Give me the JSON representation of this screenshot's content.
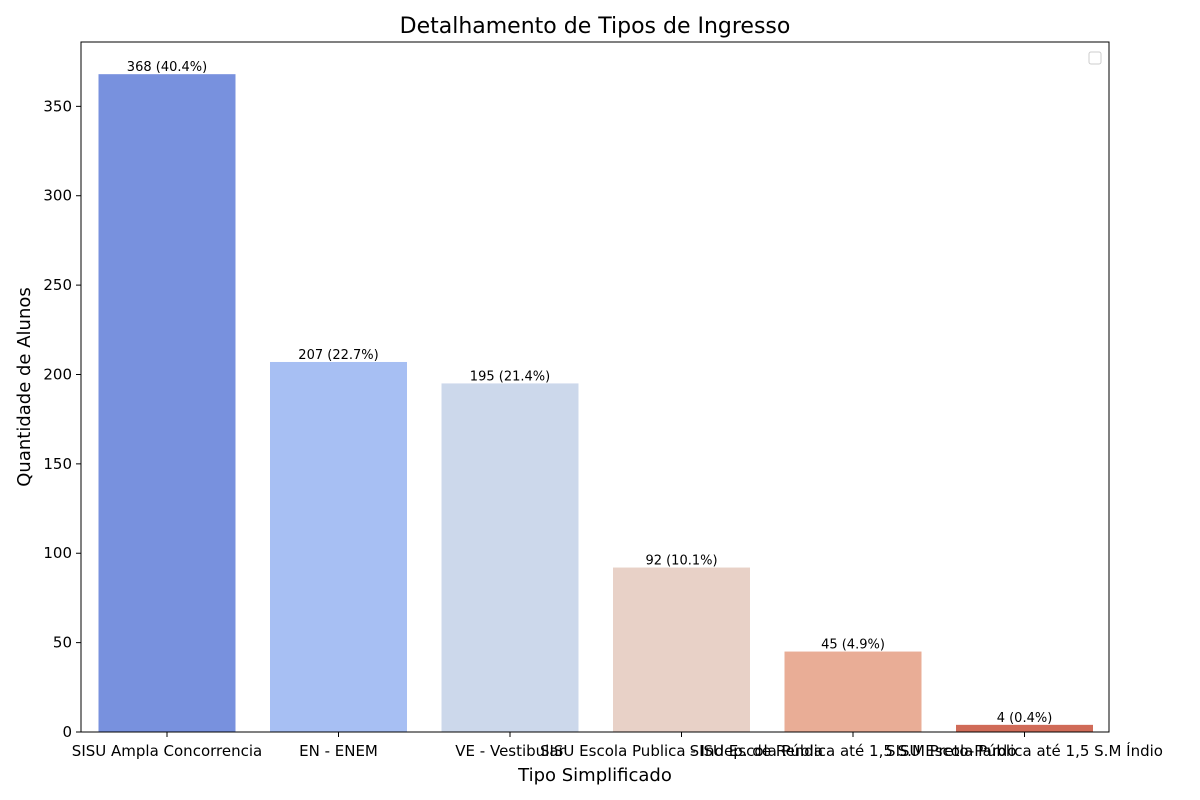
{
  "chart_data": {
    "type": "bar",
    "title": "Detalhamento de Tipos de Ingresso",
    "xlabel": "Tipo Simplificado",
    "ylabel": "Quantidade de Alunos",
    "categories": [
      "SISU Ampla Concorrencia",
      "EN - ENEM",
      "VE - Vestibular",
      "SISU Escola Publica - Indep. de Renda",
      "SISU Escola Pública até 1,5 S.M Preto-Pardo",
      "SISU Escola Pública até 1,5 S.M Índio"
    ],
    "values": [
      368,
      207,
      195,
      92,
      45,
      4
    ],
    "data_labels": [
      "368 (40.4%)",
      "207 (22.7%)",
      "195 (21.4%)",
      "92 (10.1%)",
      "45 (4.9%)",
      "4 (0.4%)"
    ],
    "colors": [
      "#7891de",
      "#a7bff3",
      "#ccd8eb",
      "#e8d1c7",
      "#e9ad96",
      "#d06b58"
    ],
    "ylim": [
      0,
      386
    ],
    "yticks": [
      0,
      50,
      100,
      150,
      200,
      250,
      300,
      350
    ],
    "grid": false,
    "legend": "top-right (empty)"
  }
}
